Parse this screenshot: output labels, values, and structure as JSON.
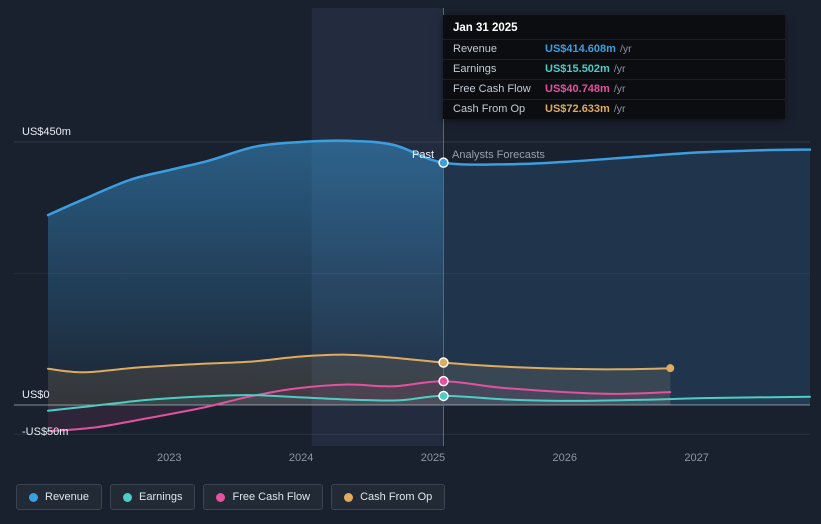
{
  "chart_data": {
    "type": "area",
    "unit": "US$m",
    "x_axis": {
      "ticks": [
        "2023",
        "2024",
        "2025",
        "2026",
        "2027"
      ],
      "tick_values": [
        2023,
        2024,
        2025,
        2026,
        2027
      ],
      "range": [
        2022.08,
        2027.86
      ]
    },
    "y_axis": {
      "ticks": [
        {
          "label": "US$450m",
          "value": 450
        },
        {
          "label": "US$0",
          "value": 0
        },
        {
          "label": "-US$50m",
          "value": -50
        }
      ],
      "minor": [
        225
      ],
      "range": [
        -75,
        500
      ]
    },
    "divider": {
      "value": 2025.08,
      "past_label": "Past",
      "forecast_label": "Analysts Forecasts"
    },
    "highlight_band": [
      2024.08,
      2025.08
    ],
    "series": [
      {
        "name": "Revenue",
        "color": "#3B9EE0",
        "line_width": 2.5,
        "gradient": true,
        "fill_forecast": "rgba(59,130,195,0.20)",
        "marker_value": 414.608,
        "past": [
          [
            2022.08,
            325
          ],
          [
            2022.35,
            352
          ],
          [
            2022.7,
            385
          ],
          [
            2023.0,
            402
          ],
          [
            2023.3,
            418
          ],
          [
            2023.65,
            442
          ],
          [
            2024.0,
            450
          ],
          [
            2024.35,
            452
          ],
          [
            2024.7,
            445
          ],
          [
            2025.08,
            414.6
          ]
        ],
        "forecast": [
          [
            2025.08,
            414.6
          ],
          [
            2025.6,
            412
          ],
          [
            2026.0,
            416
          ],
          [
            2026.5,
            424
          ],
          [
            2027.0,
            432
          ],
          [
            2027.5,
            436
          ],
          [
            2027.86,
            437
          ]
        ]
      },
      {
        "name": "Cash From Op",
        "color": "#DFAB5E",
        "line_width": 2,
        "fill_past": "rgba(223,171,94,0.13)",
        "fill_forecast": "rgba(215,190,150,0.14)",
        "marker_value": 72.633,
        "end_dot": true,
        "past": [
          [
            2022.08,
            62
          ],
          [
            2022.35,
            56
          ],
          [
            2022.75,
            64
          ],
          [
            2023.2,
            70
          ],
          [
            2023.6,
            74
          ],
          [
            2024.0,
            83
          ],
          [
            2024.35,
            86
          ],
          [
            2024.7,
            81
          ],
          [
            2025.08,
            72.633
          ]
        ],
        "forecast": [
          [
            2025.08,
            72.633
          ],
          [
            2025.5,
            66
          ],
          [
            2026.0,
            62
          ],
          [
            2026.4,
            61
          ],
          [
            2026.8,
            63
          ]
        ]
      },
      {
        "name": "Free Cash Flow",
        "color": "#E2529E",
        "line_width": 2,
        "fill_past": "rgba(226,82,158,0.10)",
        "fill_forecast": "rgba(226,82,158,0.07)",
        "marker_value": 40.748,
        "past": [
          [
            2022.08,
            -45
          ],
          [
            2022.45,
            -38
          ],
          [
            2022.85,
            -22
          ],
          [
            2023.25,
            -5
          ],
          [
            2023.6,
            14
          ],
          [
            2023.95,
            28
          ],
          [
            2024.35,
            35
          ],
          [
            2024.7,
            32
          ],
          [
            2025.08,
            40.748
          ]
        ],
        "forecast": [
          [
            2025.08,
            40.748
          ],
          [
            2025.5,
            30
          ],
          [
            2026.0,
            22
          ],
          [
            2026.4,
            19
          ],
          [
            2026.8,
            22
          ]
        ]
      },
      {
        "name": "Earnings",
        "color": "#4ECDC4",
        "line_width": 2,
        "fill_past": "rgba(78,205,196,0.10)",
        "fill_forecast": "rgba(78,205,196,0.07)",
        "marker_value": 15.502,
        "past": [
          [
            2022.08,
            -10
          ],
          [
            2022.4,
            -2
          ],
          [
            2022.8,
            8
          ],
          [
            2023.2,
            14
          ],
          [
            2023.6,
            17
          ],
          [
            2024.0,
            13
          ],
          [
            2024.4,
            9
          ],
          [
            2024.75,
            8
          ],
          [
            2025.08,
            15.502
          ]
        ],
        "forecast": [
          [
            2025.08,
            15.502
          ],
          [
            2025.6,
            9
          ],
          [
            2026.1,
            7
          ],
          [
            2026.6,
            9
          ],
          [
            2027.1,
            12
          ],
          [
            2027.86,
            14
          ]
        ]
      }
    ]
  },
  "tooltip": {
    "title": "Jan 31 2025",
    "rows": [
      {
        "label": "Revenue",
        "value": "US$414.608m",
        "suffix": "/yr",
        "color": "#3B9EE0"
      },
      {
        "label": "Earnings",
        "value": "US$15.502m",
        "suffix": "/yr",
        "color": "#4ECDC4"
      },
      {
        "label": "Free Cash Flow",
        "value": "US$40.748m",
        "suffix": "/yr",
        "color": "#E2529E"
      },
      {
        "label": "Cash From Op",
        "value": "US$72.633m",
        "suffix": "/yr",
        "color": "#DFAB5E"
      }
    ]
  },
  "legend": {
    "items": [
      {
        "label": "Revenue",
        "color": "#3B9EE0"
      },
      {
        "label": "Earnings",
        "color": "#4ECDC4"
      },
      {
        "label": "Free Cash Flow",
        "color": "#E2529E"
      },
      {
        "label": "Cash From Op",
        "color": "#DFAB5E"
      }
    ]
  }
}
